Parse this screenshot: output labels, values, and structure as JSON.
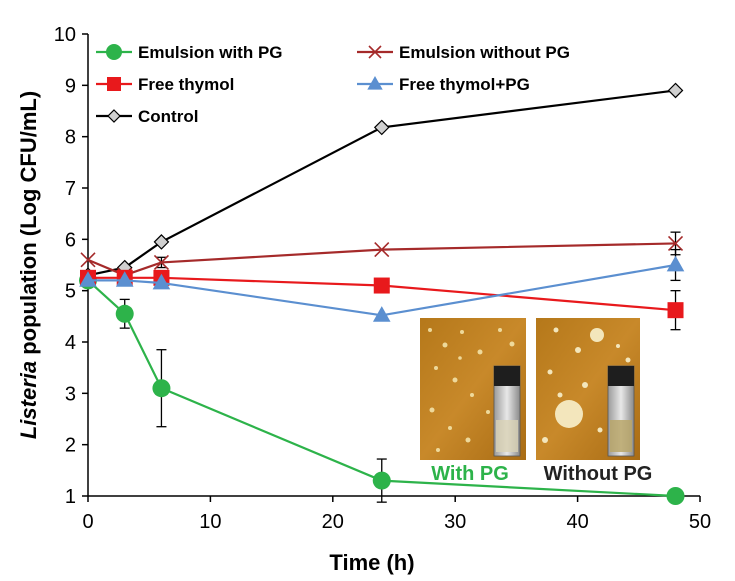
{
  "chart_data": {
    "type": "line",
    "xlabel": "Time (h)",
    "ylabel_italic": "Listeria",
    "ylabel_rest": " population (Log CFU/mL)",
    "xlim": [
      0,
      50
    ],
    "ylim": [
      1,
      10
    ],
    "xticks": [
      "0",
      "10",
      "20",
      "30",
      "40",
      "50"
    ],
    "yticks": [
      "1",
      "2",
      "3",
      "4",
      "5",
      "6",
      "7",
      "8",
      "9",
      "10"
    ],
    "grid": false,
    "legend_placement": "top-left",
    "series": [
      {
        "name": "Emulsion with PG",
        "color": "#2db34a",
        "marker": "circle",
        "x": [
          0,
          3,
          6,
          24,
          48
        ],
        "y": [
          5.2,
          4.55,
          3.1,
          1.3,
          1.0
        ],
        "err": [
          0,
          0.28,
          0.75,
          0.42,
          0
        ]
      },
      {
        "name": "Emulsion without PG",
        "color": "#a52a2a",
        "marker": "x",
        "x": [
          0,
          3,
          6,
          24,
          48
        ],
        "y": [
          5.6,
          5.3,
          5.55,
          5.8,
          5.92
        ],
        "err": [
          0,
          0,
          0.1,
          0,
          0.22
        ]
      },
      {
        "name": "Free thymol",
        "color": "#e8191c",
        "marker": "square",
        "x": [
          0,
          3,
          6,
          24,
          48
        ],
        "y": [
          5.25,
          5.25,
          5.25,
          5.1,
          4.62
        ],
        "err": [
          0,
          0,
          0.1,
          0,
          0.38
        ]
      },
      {
        "name": "Free thymol+PG",
        "color": "#5b8fd0",
        "marker": "triangle",
        "x": [
          0,
          3,
          6,
          24,
          48
        ],
        "y": [
          5.2,
          5.2,
          5.15,
          4.52,
          5.5
        ],
        "err": [
          0,
          0,
          0,
          0,
          0.3
        ]
      },
      {
        "name": "Control",
        "color": "#000000",
        "marker": "diamond",
        "x": [
          0,
          3,
          6,
          24,
          48
        ],
        "y": [
          5.3,
          5.45,
          5.95,
          8.18,
          8.9
        ],
        "err": [
          0,
          0,
          0,
          0,
          0
        ]
      }
    ]
  },
  "inset": {
    "with_pg_label": "With PG",
    "without_pg_label": "Without PG",
    "with_pg_color": "#2db34a",
    "without_pg_color": "#222222"
  }
}
